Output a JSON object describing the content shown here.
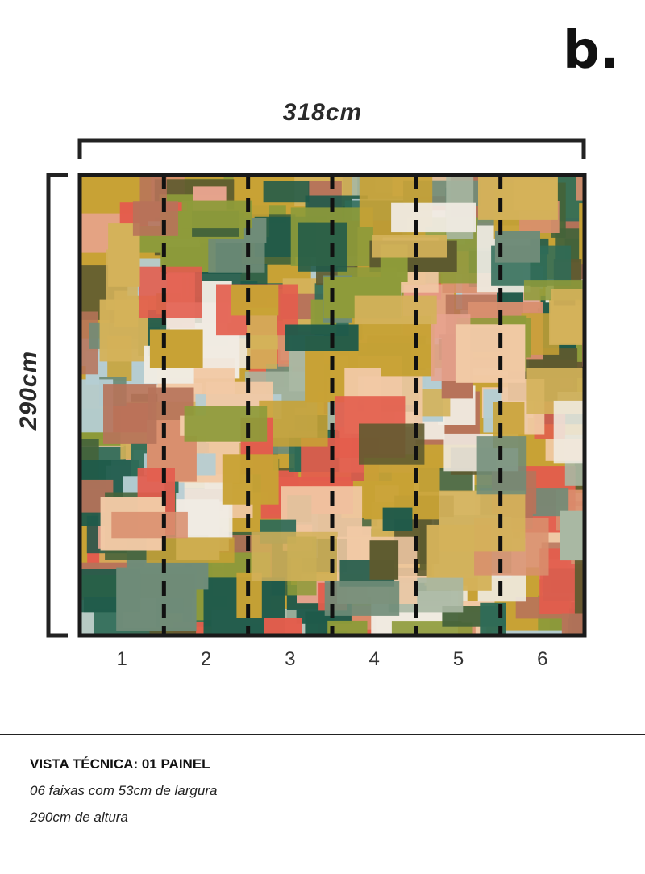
{
  "header": {
    "logo": "b."
  },
  "panel": {
    "width_label": "318cm",
    "height_label": "290cm",
    "strips": [
      "1",
      "2",
      "3",
      "4",
      "5",
      "6"
    ]
  },
  "footer": {
    "title": "VISTA TÉCNICA: 01 PAINEL",
    "line1": "06 faixas com 53cm de largura",
    "line2": "290cm de altura"
  }
}
